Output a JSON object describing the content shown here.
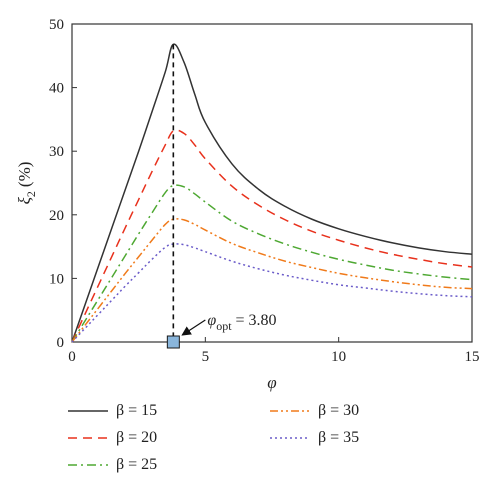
{
  "chart_data": {
    "type": "line",
    "xlabel": "φ",
    "ylabel_symbol": "ξ",
    "ylabel_subscript": "2",
    "ylabel_unit": "(%)",
    "xlim": [
      0,
      15
    ],
    "ylim": [
      0,
      50
    ],
    "xticks": [
      0,
      5,
      10,
      15
    ],
    "yticks": [
      0,
      10,
      20,
      30,
      40,
      50
    ],
    "grid": false,
    "legend_position": "bottom",
    "annotation": {
      "symbol": "φ",
      "subscript": "opt",
      "text": " = 3.80",
      "x": 3.8,
      "y": 0
    },
    "optimum_line_x": 3.8,
    "x": [
      0,
      0.5,
      1,
      1.5,
      2,
      2.5,
      3,
      3.5,
      3.8,
      4.2,
      4.6,
      5,
      6,
      7,
      8,
      9,
      10,
      11,
      12,
      13,
      14,
      15
    ],
    "series": [
      {
        "name": "β = 15",
        "color": "#333333",
        "dash": "",
        "values": [
          0,
          6,
          12,
          18,
          24,
          30,
          36.2,
          42.5,
          46.8,
          44,
          39,
          34.5,
          28,
          24,
          21.3,
          19.3,
          17.8,
          16.6,
          15.6,
          14.8,
          14.2,
          13.8
        ]
      },
      {
        "name": "β = 20",
        "color": "#e8311c",
        "dash": "9,6",
        "values": [
          0,
          4.5,
          9,
          13.5,
          18,
          22.4,
          26.8,
          31,
          33.2,
          32.8,
          31,
          28.8,
          24.5,
          21.5,
          19.2,
          17.4,
          16,
          14.8,
          13.8,
          13,
          12.3,
          11.8
        ]
      },
      {
        "name": "β = 25",
        "color": "#4ea832",
        "dash": "9,4,2,4",
        "values": [
          0,
          3.4,
          6.8,
          10.2,
          13.6,
          17,
          20.3,
          23.5,
          24.6,
          24.4,
          23.3,
          22,
          19,
          17,
          15.4,
          14.1,
          13,
          12.1,
          11.3,
          10.7,
          10.2,
          9.8
        ]
      },
      {
        "name": "β = 30",
        "color": "#f07a1a",
        "dash": "8,3,2,3,2,3",
        "values": [
          0,
          2.7,
          5.4,
          8.1,
          10.8,
          13.4,
          16,
          18.5,
          19.3,
          19.2,
          18.5,
          17.6,
          15.5,
          14,
          12.7,
          11.7,
          10.8,
          10.1,
          9.5,
          9,
          8.6,
          8.4
        ]
      },
      {
        "name": "β = 35",
        "color": "#6a5bc9",
        "dash": "2,3",
        "values": [
          0,
          2.2,
          4.4,
          6.6,
          8.8,
          10.9,
          13,
          14.9,
          15.4,
          15.3,
          14.8,
          14.2,
          12.7,
          11.5,
          10.5,
          9.7,
          9,
          8.5,
          8,
          7.6,
          7.3,
          7.1
        ]
      }
    ]
  }
}
